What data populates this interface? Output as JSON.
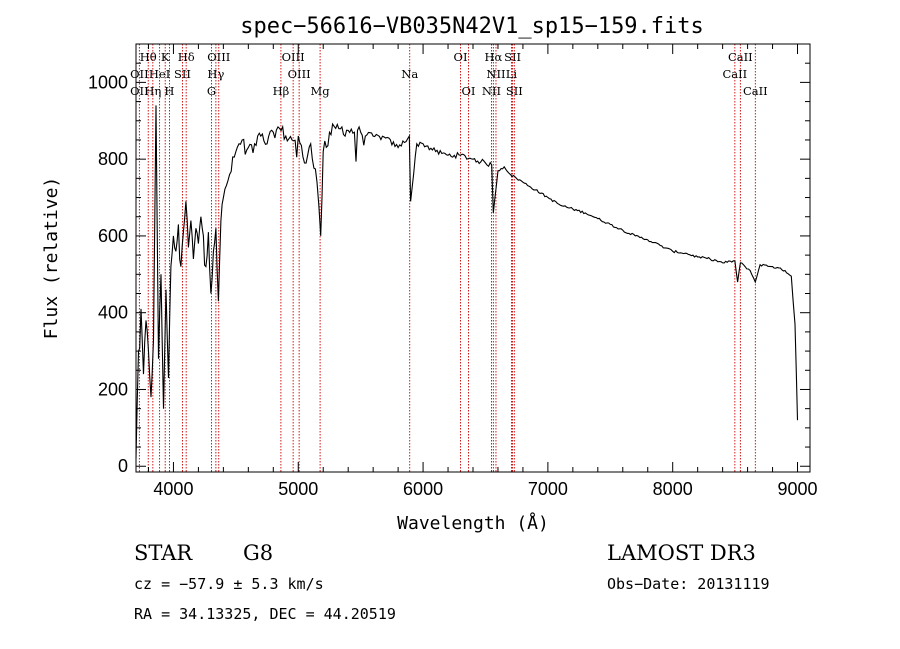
{
  "chart_data": {
    "type": "line",
    "title": "spec−56616−VB035N42V1_sp15−159.fits",
    "xlabel": "Wavelength (Å)",
    "ylabel": "Flux (relative)",
    "xlim": [
      3700,
      9100
    ],
    "ylim": [
      -15,
      1100
    ],
    "x_ticks": [
      4000,
      5000,
      6000,
      7000,
      8000,
      9000
    ],
    "x_tick_labels": [
      "4000",
      "5000",
      "6000",
      "7000",
      "8000",
      "9000"
    ],
    "y_ticks": [
      0,
      200,
      400,
      600,
      800,
      1000
    ],
    "y_tick_labels": [
      "0",
      "200",
      "400",
      "600",
      "800",
      "1000"
    ],
    "series": [
      {
        "name": "spectrum",
        "color": "#000000",
        "x": [
          3700,
          3720,
          3740,
          3760,
          3780,
          3800,
          3820,
          3840,
          3860,
          3880,
          3900,
          3920,
          3940,
          3960,
          3980,
          4000,
          4020,
          4040,
          4060,
          4080,
          4100,
          4120,
          4140,
          4160,
          4180,
          4200,
          4220,
          4240,
          4260,
          4280,
          4300,
          4320,
          4340,
          4360,
          4380,
          4400,
          4450,
          4500,
          4550,
          4600,
          4650,
          4700,
          4750,
          4800,
          4850,
          4900,
          4950,
          5000,
          5050,
          5100,
          5150,
          5180,
          5200,
          5250,
          5300,
          5400,
          5500,
          5600,
          5700,
          5800,
          5890,
          5900,
          5950,
          6000,
          6100,
          6200,
          6300,
          6400,
          6500,
          6550,
          6563,
          6600,
          6650,
          6700,
          6800,
          6900,
          7000,
          7100,
          7200,
          7300,
          7400,
          7500,
          7600,
          7700,
          7800,
          7900,
          8000,
          8100,
          8200,
          8300,
          8400,
          8498,
          8520,
          8542,
          8580,
          8620,
          8662,
          8700,
          8800,
          8900,
          8950,
          8980,
          9000
        ],
        "y": [
          20,
          300,
          410,
          240,
          380,
          300,
          180,
          330,
          940,
          280,
          500,
          150,
          460,
          230,
          520,
          600,
          560,
          630,
          520,
          610,
          690,
          570,
          640,
          540,
          620,
          580,
          650,
          600,
          520,
          610,
          450,
          560,
          620,
          430,
          640,
          700,
          760,
          820,
          850,
          830,
          840,
          860,
          840,
          870,
          880,
          860,
          850,
          860,
          790,
          840,
          740,
          600,
          820,
          870,
          880,
          875,
          870,
          860,
          855,
          830,
          860,
          690,
          840,
          840,
          820,
          810,
          810,
          800,
          790,
          785,
          660,
          770,
          780,
          760,
          740,
          720,
          700,
          680,
          670,
          660,
          645,
          630,
          615,
          600,
          590,
          575,
          560,
          555,
          545,
          540,
          530,
          535,
          480,
          530,
          520,
          510,
          480,
          525,
          520,
          510,
          495,
          370,
          120
        ]
      }
    ],
    "line_labels": [
      {
        "label": "Hθ",
        "wavelength": 3798,
        "row": 1
      },
      {
        "label": "OII",
        "wavelength": 3727,
        "row": 2
      },
      {
        "label": "HeI",
        "wavelength": 3889,
        "row": 2
      },
      {
        "label": "OII",
        "wavelength": 3727,
        "row": 3
      },
      {
        "label": "Hη",
        "wavelength": 3835,
        "row": 3
      },
      {
        "label": "K",
        "wavelength": 3934,
        "row": 1
      },
      {
        "label": "H",
        "wavelength": 3968,
        "row": 3
      },
      {
        "label": "SII",
        "wavelength": 4072,
        "row": 2
      },
      {
        "label": "Hδ",
        "wavelength": 4102,
        "row": 1
      },
      {
        "label": "OIII",
        "wavelength": 4363,
        "row": 1
      },
      {
        "label": "Hγ",
        "wavelength": 4340,
        "row": 2
      },
      {
        "label": "G",
        "wavelength": 4305,
        "row": 3
      },
      {
        "label": "OIII",
        "wavelength": 4959,
        "row": 1
      },
      {
        "label": "OIII",
        "wavelength": 5007,
        "row": 2
      },
      {
        "label": "Hβ",
        "wavelength": 4861,
        "row": 3
      },
      {
        "label": "Mg",
        "wavelength": 5175,
        "row": 3
      },
      {
        "label": "Na",
        "wavelength": 5893,
        "row": 2
      },
      {
        "label": "OI",
        "wavelength": 6300,
        "row": 1
      },
      {
        "label": "OI",
        "wavelength": 6364,
        "row": 3
      },
      {
        "label": "Hα",
        "wavelength": 6563,
        "row": 1
      },
      {
        "label": "SII",
        "wavelength": 6717,
        "row": 1
      },
      {
        "label": "NII",
        "wavelength": 6584,
        "row": 2
      },
      {
        "label": "Li",
        "wavelength": 6708,
        "row": 2
      },
      {
        "label": "NII",
        "wavelength": 6548,
        "row": 3
      },
      {
        "label": "SII",
        "wavelength": 6731,
        "row": 3
      },
      {
        "label": "CaII",
        "wavelength": 8542,
        "row": 1
      },
      {
        "label": "CaII",
        "wavelength": 8498,
        "row": 2
      },
      {
        "label": "CaII",
        "wavelength": 8662,
        "row": 3
      }
    ],
    "line_marker_color": "#cc0000"
  },
  "footer": {
    "object_class": "STAR",
    "subclass": "G8",
    "survey": "LAMOST DR3",
    "cz": "cz = −57.9 ± 5.3 km/s",
    "obs_date": "Obs−Date: 20131119",
    "coords": "RA =  34.13325, DEC =  44.20519"
  }
}
